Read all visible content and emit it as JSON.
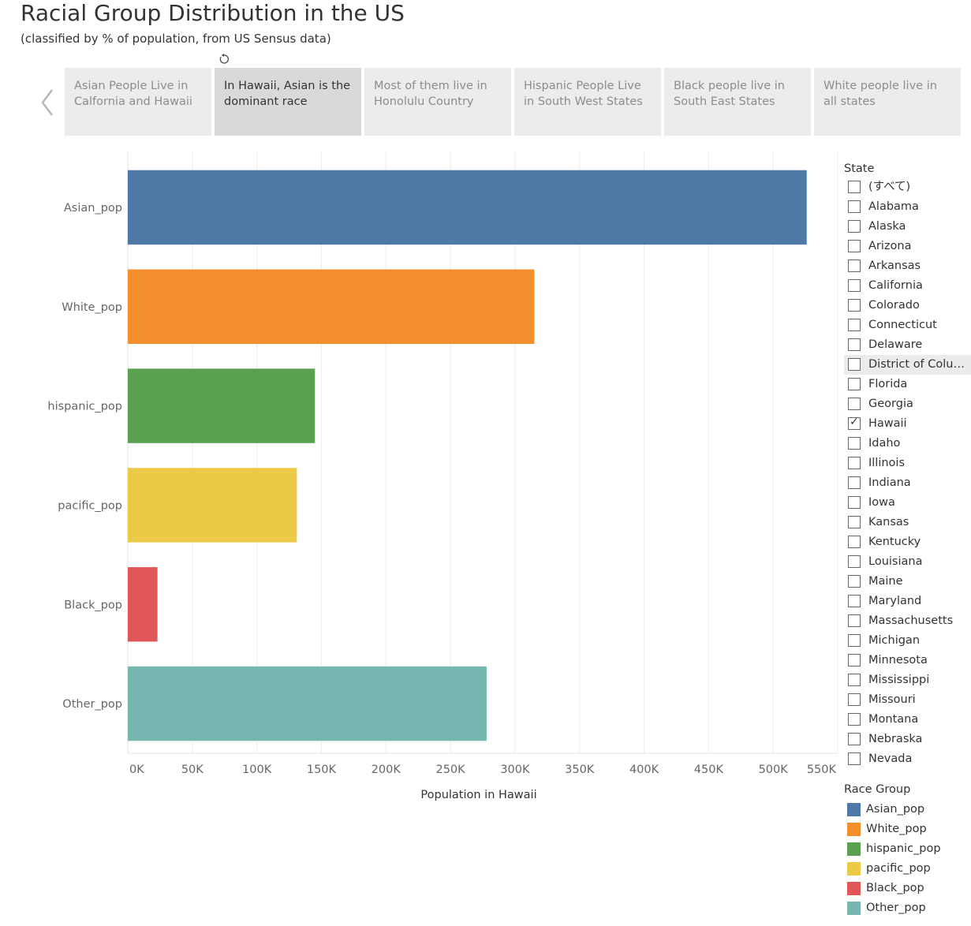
{
  "header": {
    "title": "Racial Group Distribution in the US",
    "subtitle": "(classified by % of population, from US Sensus data)"
  },
  "icons": {
    "revert": "revert-icon",
    "prev": "chevron-left-icon"
  },
  "story": {
    "active_index": 1,
    "points": [
      "Asian People Live in Calfornia and Hawaii",
      "In Hawaii, Asian is the dominant race",
      "Most of them live in Honolulu Country",
      "Hispanic People Live in South West States",
      "Black people live in South East States",
      "White people live in all states"
    ]
  },
  "chart_data": {
    "type": "bar",
    "orientation": "horizontal",
    "categories": [
      "Asian_pop",
      "White_pop",
      "hispanic_pop",
      "pacific_pop",
      "Black_pop",
      "Other_pop"
    ],
    "values": [
      526000,
      315000,
      145000,
      131000,
      23000,
      278000
    ],
    "colors": [
      "#4e79a7",
      "#f28e2b",
      "#59a14f",
      "#edc948",
      "#e15759",
      "#76b7b2"
    ],
    "xlabel": "Population in Hawaii",
    "ylabel": "",
    "xlim": [
      0,
      550000
    ],
    "xticks": [
      0,
      50000,
      100000,
      150000,
      200000,
      250000,
      300000,
      350000,
      400000,
      450000,
      500000,
      550000
    ],
    "xtick_labels": [
      "0K",
      "50K",
      "100K",
      "150K",
      "200K",
      "250K",
      "300K",
      "350K",
      "400K",
      "450K",
      "500K",
      "550K"
    ],
    "grid": true
  },
  "filter": {
    "title": "State",
    "items": [
      {
        "label": "(すべて)",
        "checked": false
      },
      {
        "label": "Alabama",
        "checked": false
      },
      {
        "label": "Alaska",
        "checked": false
      },
      {
        "label": "Arizona",
        "checked": false
      },
      {
        "label": "Arkansas",
        "checked": false
      },
      {
        "label": "California",
        "checked": false
      },
      {
        "label": "Colorado",
        "checked": false
      },
      {
        "label": "Connecticut",
        "checked": false
      },
      {
        "label": "Delaware",
        "checked": false
      },
      {
        "label": "District of Columbia",
        "checked": false,
        "hover": true
      },
      {
        "label": "Florida",
        "checked": false
      },
      {
        "label": "Georgia",
        "checked": false
      },
      {
        "label": "Hawaii",
        "checked": true
      },
      {
        "label": "Idaho",
        "checked": false
      },
      {
        "label": "Illinois",
        "checked": false
      },
      {
        "label": "Indiana",
        "checked": false
      },
      {
        "label": "Iowa",
        "checked": false
      },
      {
        "label": "Kansas",
        "checked": false
      },
      {
        "label": "Kentucky",
        "checked": false
      },
      {
        "label": "Louisiana",
        "checked": false
      },
      {
        "label": "Maine",
        "checked": false
      },
      {
        "label": "Maryland",
        "checked": false
      },
      {
        "label": "Massachusetts",
        "checked": false
      },
      {
        "label": "Michigan",
        "checked": false
      },
      {
        "label": "Minnesota",
        "checked": false
      },
      {
        "label": "Mississippi",
        "checked": false
      },
      {
        "label": "Missouri",
        "checked": false
      },
      {
        "label": "Montana",
        "checked": false
      },
      {
        "label": "Nebraska",
        "checked": false
      },
      {
        "label": "Nevada",
        "checked": false
      }
    ]
  },
  "legend": {
    "title": "Race Group",
    "items": [
      {
        "label": "Asian_pop",
        "color": "#4e79a7"
      },
      {
        "label": "White_pop",
        "color": "#f28e2b"
      },
      {
        "label": "hispanic_pop",
        "color": "#59a14f"
      },
      {
        "label": "pacific_pop",
        "color": "#edc948"
      },
      {
        "label": "Black_pop",
        "color": "#e15759"
      },
      {
        "label": "Other_pop",
        "color": "#76b7b2"
      }
    ]
  }
}
